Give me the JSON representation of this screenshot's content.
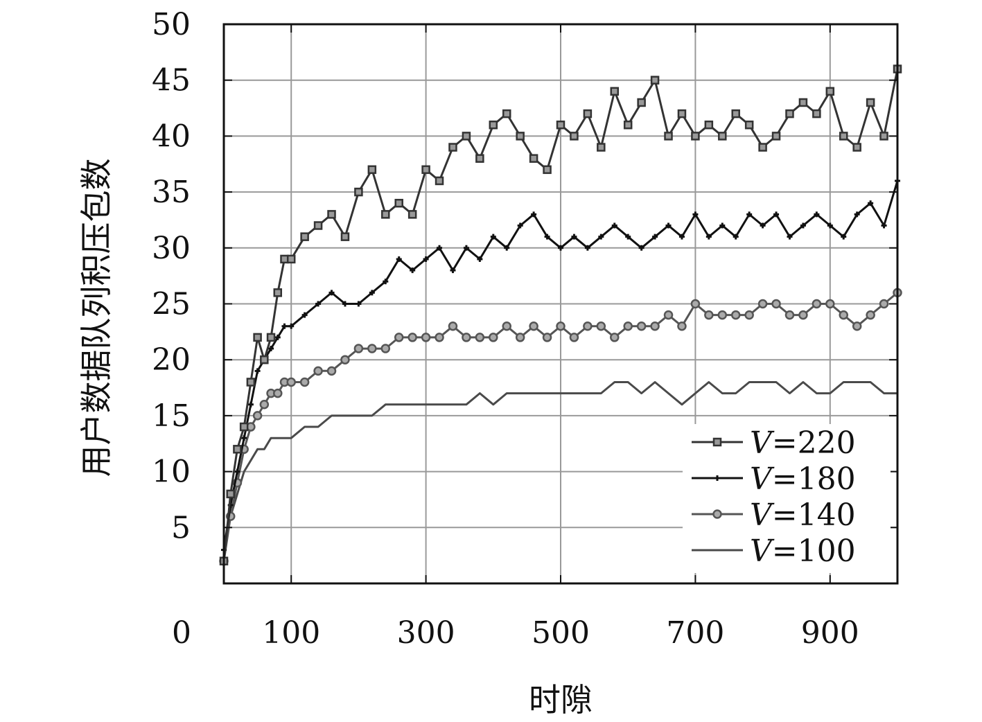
{
  "chart_data": {
    "type": "line",
    "xlabel": "时隙",
    "ylabel": "用户数据队列积压包数",
    "xlim": [
      0,
      1000
    ],
    "ylim": [
      0,
      50
    ],
    "x_ticks": [
      100,
      300,
      500,
      700,
      900
    ],
    "y_ticks": [
      5,
      10,
      15,
      20,
      25,
      30,
      35,
      40,
      45,
      50
    ],
    "origin_label": "0",
    "grid": true,
    "legend_position": "bottom-right",
    "series": [
      {
        "name": "V=220",
        "name_var": "V",
        "name_eq": "=220",
        "marker": "square",
        "color": "#333333",
        "x": [
          0,
          10,
          20,
          30,
          40,
          50,
          60,
          70,
          80,
          90,
          100,
          120,
          140,
          160,
          180,
          200,
          220,
          240,
          260,
          280,
          300,
          320,
          340,
          360,
          380,
          400,
          420,
          440,
          460,
          480,
          500,
          520,
          540,
          560,
          580,
          600,
          620,
          640,
          660,
          680,
          700,
          720,
          740,
          760,
          780,
          800,
          820,
          840,
          860,
          880,
          900,
          920,
          940,
          960,
          980,
          1000
        ],
        "y": [
          2,
          8,
          12,
          14,
          18,
          22,
          20,
          22,
          26,
          29,
          29,
          31,
          32,
          33,
          31,
          35,
          37,
          33,
          34,
          33,
          37,
          36,
          39,
          40,
          38,
          41,
          42,
          40,
          38,
          37,
          41,
          40,
          42,
          39,
          44,
          41,
          43,
          45,
          40,
          42,
          40,
          41,
          40,
          42,
          41,
          39,
          40,
          42,
          43,
          42,
          44,
          40,
          39,
          43,
          40,
          46
        ]
      },
      {
        "name": "V=180",
        "name_var": "V",
        "name_eq": "=180",
        "marker": "plus",
        "color": "#111111",
        "x": [
          0,
          10,
          20,
          30,
          40,
          50,
          60,
          70,
          80,
          90,
          100,
          120,
          140,
          160,
          180,
          200,
          220,
          240,
          260,
          280,
          300,
          320,
          340,
          360,
          380,
          400,
          420,
          440,
          460,
          480,
          500,
          520,
          540,
          560,
          580,
          600,
          620,
          640,
          660,
          680,
          700,
          720,
          740,
          760,
          780,
          800,
          820,
          840,
          860,
          880,
          900,
          920,
          940,
          960,
          980,
          1000
        ],
        "y": [
          3,
          7,
          10,
          13,
          16,
          19,
          20,
          21,
          22,
          23,
          23,
          24,
          25,
          26,
          25,
          25,
          26,
          27,
          29,
          28,
          29,
          30,
          28,
          30,
          29,
          31,
          30,
          32,
          33,
          31,
          30,
          31,
          30,
          31,
          32,
          31,
          30,
          31,
          32,
          31,
          33,
          31,
          32,
          31,
          33,
          32,
          33,
          31,
          32,
          33,
          32,
          31,
          33,
          34,
          32,
          36
        ]
      },
      {
        "name": "V=140",
        "name_var": "V",
        "name_eq": "=140",
        "marker": "circle",
        "color": "#555555",
        "x": [
          0,
          10,
          20,
          30,
          40,
          50,
          60,
          70,
          80,
          90,
          100,
          120,
          140,
          160,
          180,
          200,
          220,
          240,
          260,
          280,
          300,
          320,
          340,
          360,
          380,
          400,
          420,
          440,
          460,
          480,
          500,
          520,
          540,
          560,
          580,
          600,
          620,
          640,
          660,
          680,
          700,
          720,
          740,
          760,
          780,
          800,
          820,
          840,
          860,
          880,
          900,
          920,
          940,
          960,
          980,
          1000
        ],
        "y": [
          2,
          6,
          9,
          12,
          14,
          15,
          16,
          17,
          17,
          18,
          18,
          18,
          19,
          19,
          20,
          21,
          21,
          21,
          22,
          22,
          22,
          22,
          23,
          22,
          22,
          22,
          23,
          22,
          23,
          22,
          23,
          22,
          23,
          23,
          22,
          23,
          23,
          23,
          24,
          23,
          25,
          24,
          24,
          24,
          24,
          25,
          25,
          24,
          24,
          25,
          25,
          24,
          23,
          24,
          25,
          26
        ]
      },
      {
        "name": "V=100",
        "name_var": "V",
        "name_eq": "=100",
        "marker": "none",
        "color": "#4a4a4a",
        "x": [
          0,
          10,
          20,
          30,
          40,
          50,
          60,
          70,
          80,
          90,
          100,
          120,
          140,
          160,
          180,
          200,
          220,
          240,
          260,
          280,
          300,
          320,
          340,
          360,
          380,
          400,
          420,
          440,
          460,
          480,
          500,
          520,
          540,
          560,
          580,
          600,
          620,
          640,
          660,
          680,
          700,
          720,
          740,
          760,
          780,
          800,
          820,
          840,
          860,
          880,
          900,
          920,
          940,
          960,
          980,
          1000
        ],
        "y": [
          3,
          6,
          8,
          10,
          11,
          12,
          12,
          13,
          13,
          13,
          13,
          14,
          14,
          15,
          15,
          15,
          15,
          16,
          16,
          16,
          16,
          16,
          16,
          16,
          17,
          16,
          17,
          17,
          17,
          17,
          17,
          17,
          17,
          17,
          18,
          18,
          17,
          18,
          17,
          16,
          17,
          18,
          17,
          17,
          18,
          18,
          18,
          17,
          18,
          17,
          17,
          18,
          18,
          18,
          17,
          17
        ]
      }
    ]
  },
  "colors": {
    "grid": "#999999",
    "frame": "#111111",
    "background": "#ffffff"
  }
}
